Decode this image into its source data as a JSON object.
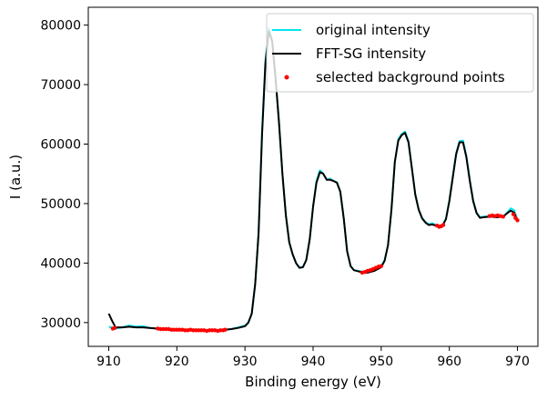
{
  "chart_data": {
    "type": "line",
    "title": "",
    "xlabel": "Binding energy (eV)",
    "ylabel": "I (a.u.)",
    "xlim": [
      907,
      973
    ],
    "ylim": [
      26000,
      83000
    ],
    "xticks": [
      910,
      920,
      930,
      940,
      950,
      960,
      970
    ],
    "yticks": [
      30000,
      40000,
      50000,
      60000,
      70000,
      80000
    ],
    "grid": false,
    "legend_position": "top-right",
    "legend": [
      "original intensity",
      "FFT-SG intensity",
      "selected background points"
    ],
    "series": [
      {
        "name": "original intensity",
        "kind": "line",
        "color": "#00e5ee",
        "x": [
          910,
          911,
          912,
          913,
          914,
          915,
          916,
          917,
          918,
          919,
          920,
          921,
          922,
          923,
          924,
          925,
          926,
          927,
          928,
          929,
          930,
          930.5,
          931,
          931.5,
          932,
          932.5,
          933,
          933.5,
          934,
          934.5,
          935,
          935.5,
          936,
          936.5,
          937,
          937.5,
          938,
          938.5,
          939,
          939.5,
          940,
          940.5,
          941,
          941.5,
          942,
          942.5,
          943,
          943.5,
          944,
          944.5,
          945,
          945.5,
          946,
          947,
          948,
          949,
          950,
          950.5,
          951,
          951.5,
          952,
          952.5,
          953,
          953.5,
          954,
          954.5,
          955,
          955.5,
          956,
          956.5,
          957,
          957.5,
          958,
          958.5,
          959,
          959.5,
          960,
          960.5,
          961,
          961.5,
          962,
          962.5,
          963,
          963.5,
          964,
          964.5,
          965,
          966,
          967,
          968,
          968.5,
          969,
          969.5,
          970
        ],
        "y": [
          29300,
          29000,
          29200,
          29500,
          29300,
          29400,
          29100,
          29000,
          29000,
          28900,
          28800,
          28800,
          28800,
          28800,
          28700,
          28700,
          28700,
          28800,
          28900,
          29200,
          29500,
          30000,
          31500,
          36500,
          45000,
          62000,
          74000,
          79500,
          77500,
          71000,
          63500,
          55000,
          48000,
          43500,
          41500,
          40000,
          39200,
          39400,
          40500,
          44000,
          49500,
          53800,
          55600,
          55000,
          54000,
          54200,
          53800,
          53600,
          52000,
          47500,
          42000,
          39500,
          38800,
          38600,
          38400,
          38900,
          39500,
          40500,
          43000,
          49000,
          57000,
          60800,
          61700,
          62100,
          60500,
          56000,
          51500,
          49000,
          47600,
          46900,
          46500,
          46700,
          46400,
          46100,
          46300,
          47500,
          50500,
          54500,
          58500,
          60500,
          60600,
          58000,
          54000,
          50500,
          48500,
          47700,
          47800,
          47900,
          47700,
          47900,
          48500,
          49200,
          48900,
          47300
        ]
      },
      {
        "name": "FFT-SG intensity",
        "kind": "line",
        "color": "#000000",
        "x": [
          910,
          910.5,
          911,
          912,
          913,
          914,
          915,
          916,
          917,
          918,
          919,
          920,
          921,
          922,
          923,
          924,
          925,
          926,
          927,
          928,
          929,
          930,
          930.5,
          931,
          931.5,
          932,
          932.5,
          933,
          933.5,
          934,
          934.5,
          935,
          935.5,
          936,
          936.5,
          937,
          937.5,
          938,
          938.5,
          939,
          939.5,
          940,
          940.5,
          941,
          941.5,
          942,
          942.5,
          943,
          943.5,
          944,
          944.5,
          945,
          945.5,
          946,
          947,
          948,
          949,
          950,
          950.5,
          951,
          951.5,
          952,
          952.5,
          953,
          953.5,
          954,
          954.5,
          955,
          955.5,
          956,
          956.5,
          957,
          957.5,
          958,
          958.5,
          959,
          959.5,
          960,
          960.5,
          961,
          961.5,
          962,
          962.5,
          963,
          963.5,
          964,
          964.5,
          965,
          966,
          967,
          968,
          968.5,
          969,
          969.5,
          970
        ],
        "y": [
          31500,
          30300,
          29200,
          29200,
          29300,
          29200,
          29200,
          29100,
          29000,
          28900,
          28900,
          28800,
          28800,
          28800,
          28800,
          28700,
          28700,
          28700,
          28800,
          28900,
          29100,
          29400,
          30000,
          31500,
          36500,
          45000,
          61500,
          73500,
          79000,
          77200,
          71000,
          63500,
          55000,
          48000,
          43500,
          41500,
          40000,
          39200,
          39300,
          40500,
          44000,
          49500,
          53500,
          55300,
          55000,
          54000,
          54000,
          53800,
          53500,
          52000,
          47500,
          42000,
          39500,
          38800,
          38500,
          38400,
          38700,
          39300,
          40400,
          43000,
          49000,
          57000,
          60600,
          61500,
          61900,
          60300,
          56000,
          51500,
          49000,
          47500,
          46800,
          46400,
          46500,
          46300,
          46100,
          46300,
          47400,
          50400,
          54300,
          58300,
          60300,
          60300,
          57800,
          53800,
          50400,
          48400,
          47600,
          47700,
          47800,
          47700,
          47900,
          48400,
          48800,
          48500,
          47100
        ]
      },
      {
        "name": "selected background points",
        "kind": "scatter",
        "color": "#ff0000",
        "x": [
          910.6,
          910.9,
          917.2,
          917.6,
          918.0,
          918.4,
          918.8,
          919.2,
          919.6,
          920.0,
          920.4,
          920.8,
          921.2,
          921.6,
          922.0,
          922.4,
          922.8,
          923.2,
          923.6,
          924.0,
          924.4,
          924.8,
          925.2,
          925.6,
          926.0,
          926.4,
          926.8,
          927.1,
          947.2,
          947.6,
          948.0,
          948.4,
          948.8,
          949.2,
          949.6,
          950.0,
          958.2,
          958.5,
          958.8,
          959.1,
          965.9,
          966.3,
          966.7,
          967.1,
          967.5,
          967.9,
          969.4,
          969.7,
          970.0
        ],
        "y": [
          29000,
          29100,
          29000,
          28900,
          28900,
          28900,
          28900,
          28800,
          28800,
          28800,
          28800,
          28800,
          28700,
          28700,
          28800,
          28700,
          28700,
          28700,
          28700,
          28700,
          28600,
          28700,
          28700,
          28700,
          28600,
          28700,
          28700,
          28800,
          38400,
          38500,
          38700,
          38800,
          39000,
          39200,
          39400,
          39500,
          46300,
          46100,
          46200,
          46400,
          47900,
          48000,
          47900,
          48000,
          47900,
          47800,
          48200,
          47600,
          47200
        ]
      }
    ]
  }
}
